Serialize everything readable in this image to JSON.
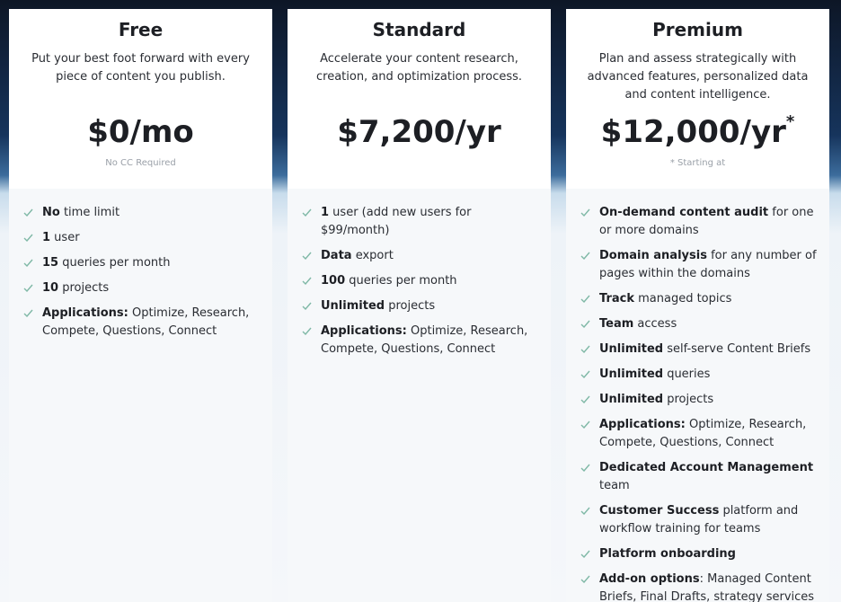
{
  "plans": [
    {
      "name": "Free",
      "description": "Put your best foot forward with every piece of content you publish.",
      "price": "$0/mo",
      "price_mark": null,
      "note": "No CC Required",
      "features": [
        {
          "strong": "No",
          "rest": " time limit"
        },
        {
          "strong": "1",
          "rest": " user"
        },
        {
          "strong": "15",
          "rest": " queries per month"
        },
        {
          "strong": "10",
          "rest": " projects"
        },
        {
          "strong": "Applications:",
          "rest": " Optimize, Research, Compete, Questions, Connect"
        }
      ]
    },
    {
      "name": "Standard",
      "description": "Accelerate your content research, creation, and optimization process.",
      "price": "$7,200/yr",
      "price_mark": null,
      "note": null,
      "features": [
        {
          "strong": "1",
          "rest": " user (add new users for $99/month)"
        },
        {
          "strong": "Data",
          "rest": " export"
        },
        {
          "strong": "100",
          "rest": " queries per month"
        },
        {
          "strong": "Unlimited",
          "rest": " projects"
        },
        {
          "strong": "Applications:",
          "rest": " Optimize, Research, Compete, Questions, Connect"
        }
      ]
    },
    {
      "name": "Premium",
      "description": "Plan and assess strategically with advanced features, personalized data and content intelligence.",
      "price": "$12,000/yr",
      "price_mark": "*",
      "note": "* Starting at",
      "features": [
        {
          "strong": "On-demand content audit",
          "rest": " for one or more domains"
        },
        {
          "strong": "Domain analysis",
          "rest": " for any number of pages within the domains"
        },
        {
          "strong": "Track",
          "rest": " managed topics"
        },
        {
          "strong": "Team",
          "rest": " access"
        },
        {
          "strong": "Unlimited",
          "rest": " self-serve Content Briefs"
        },
        {
          "strong": "Unlimited",
          "rest": " queries"
        },
        {
          "strong": "Unlimited",
          "rest": " projects"
        },
        {
          "strong": "Applications:",
          "rest": " Optimize, Research, Compete, Questions, Connect"
        },
        {
          "strong": "Dedicated Account Management",
          "rest": " team"
        },
        {
          "strong": "Customer Success",
          "rest": " platform and workflow training for teams"
        },
        {
          "strong": "Platform onboarding",
          "rest": ""
        },
        {
          "strong": "Add-on options",
          "rest": ": Managed Content Briefs, Final Drafts, strategy services"
        }
      ]
    }
  ]
}
